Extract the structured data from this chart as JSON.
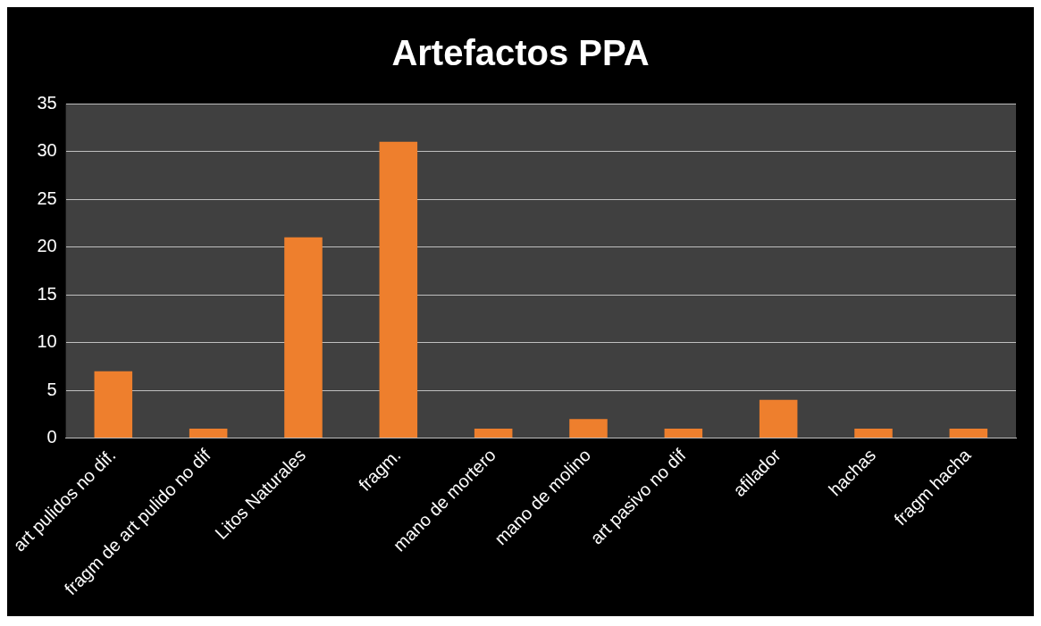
{
  "chart_data": {
    "type": "bar",
    "title": "Artefactos PPA",
    "categories": [
      "art pulidos no dif.",
      "fragm de art pulido no dif",
      "Litos Naturales",
      "fragm.",
      "mano de mortero",
      "mano de molino",
      "art pasivo no dif",
      "afilador",
      "hachas",
      "fragm hacha"
    ],
    "values": [
      7,
      1,
      21,
      31,
      1,
      2,
      1,
      4,
      1,
      1
    ],
    "color": "#ee7f2d",
    "ylim": [
      0,
      35
    ],
    "yticks": [
      0,
      5,
      10,
      15,
      20,
      25,
      30,
      35
    ],
    "grid": "y"
  }
}
